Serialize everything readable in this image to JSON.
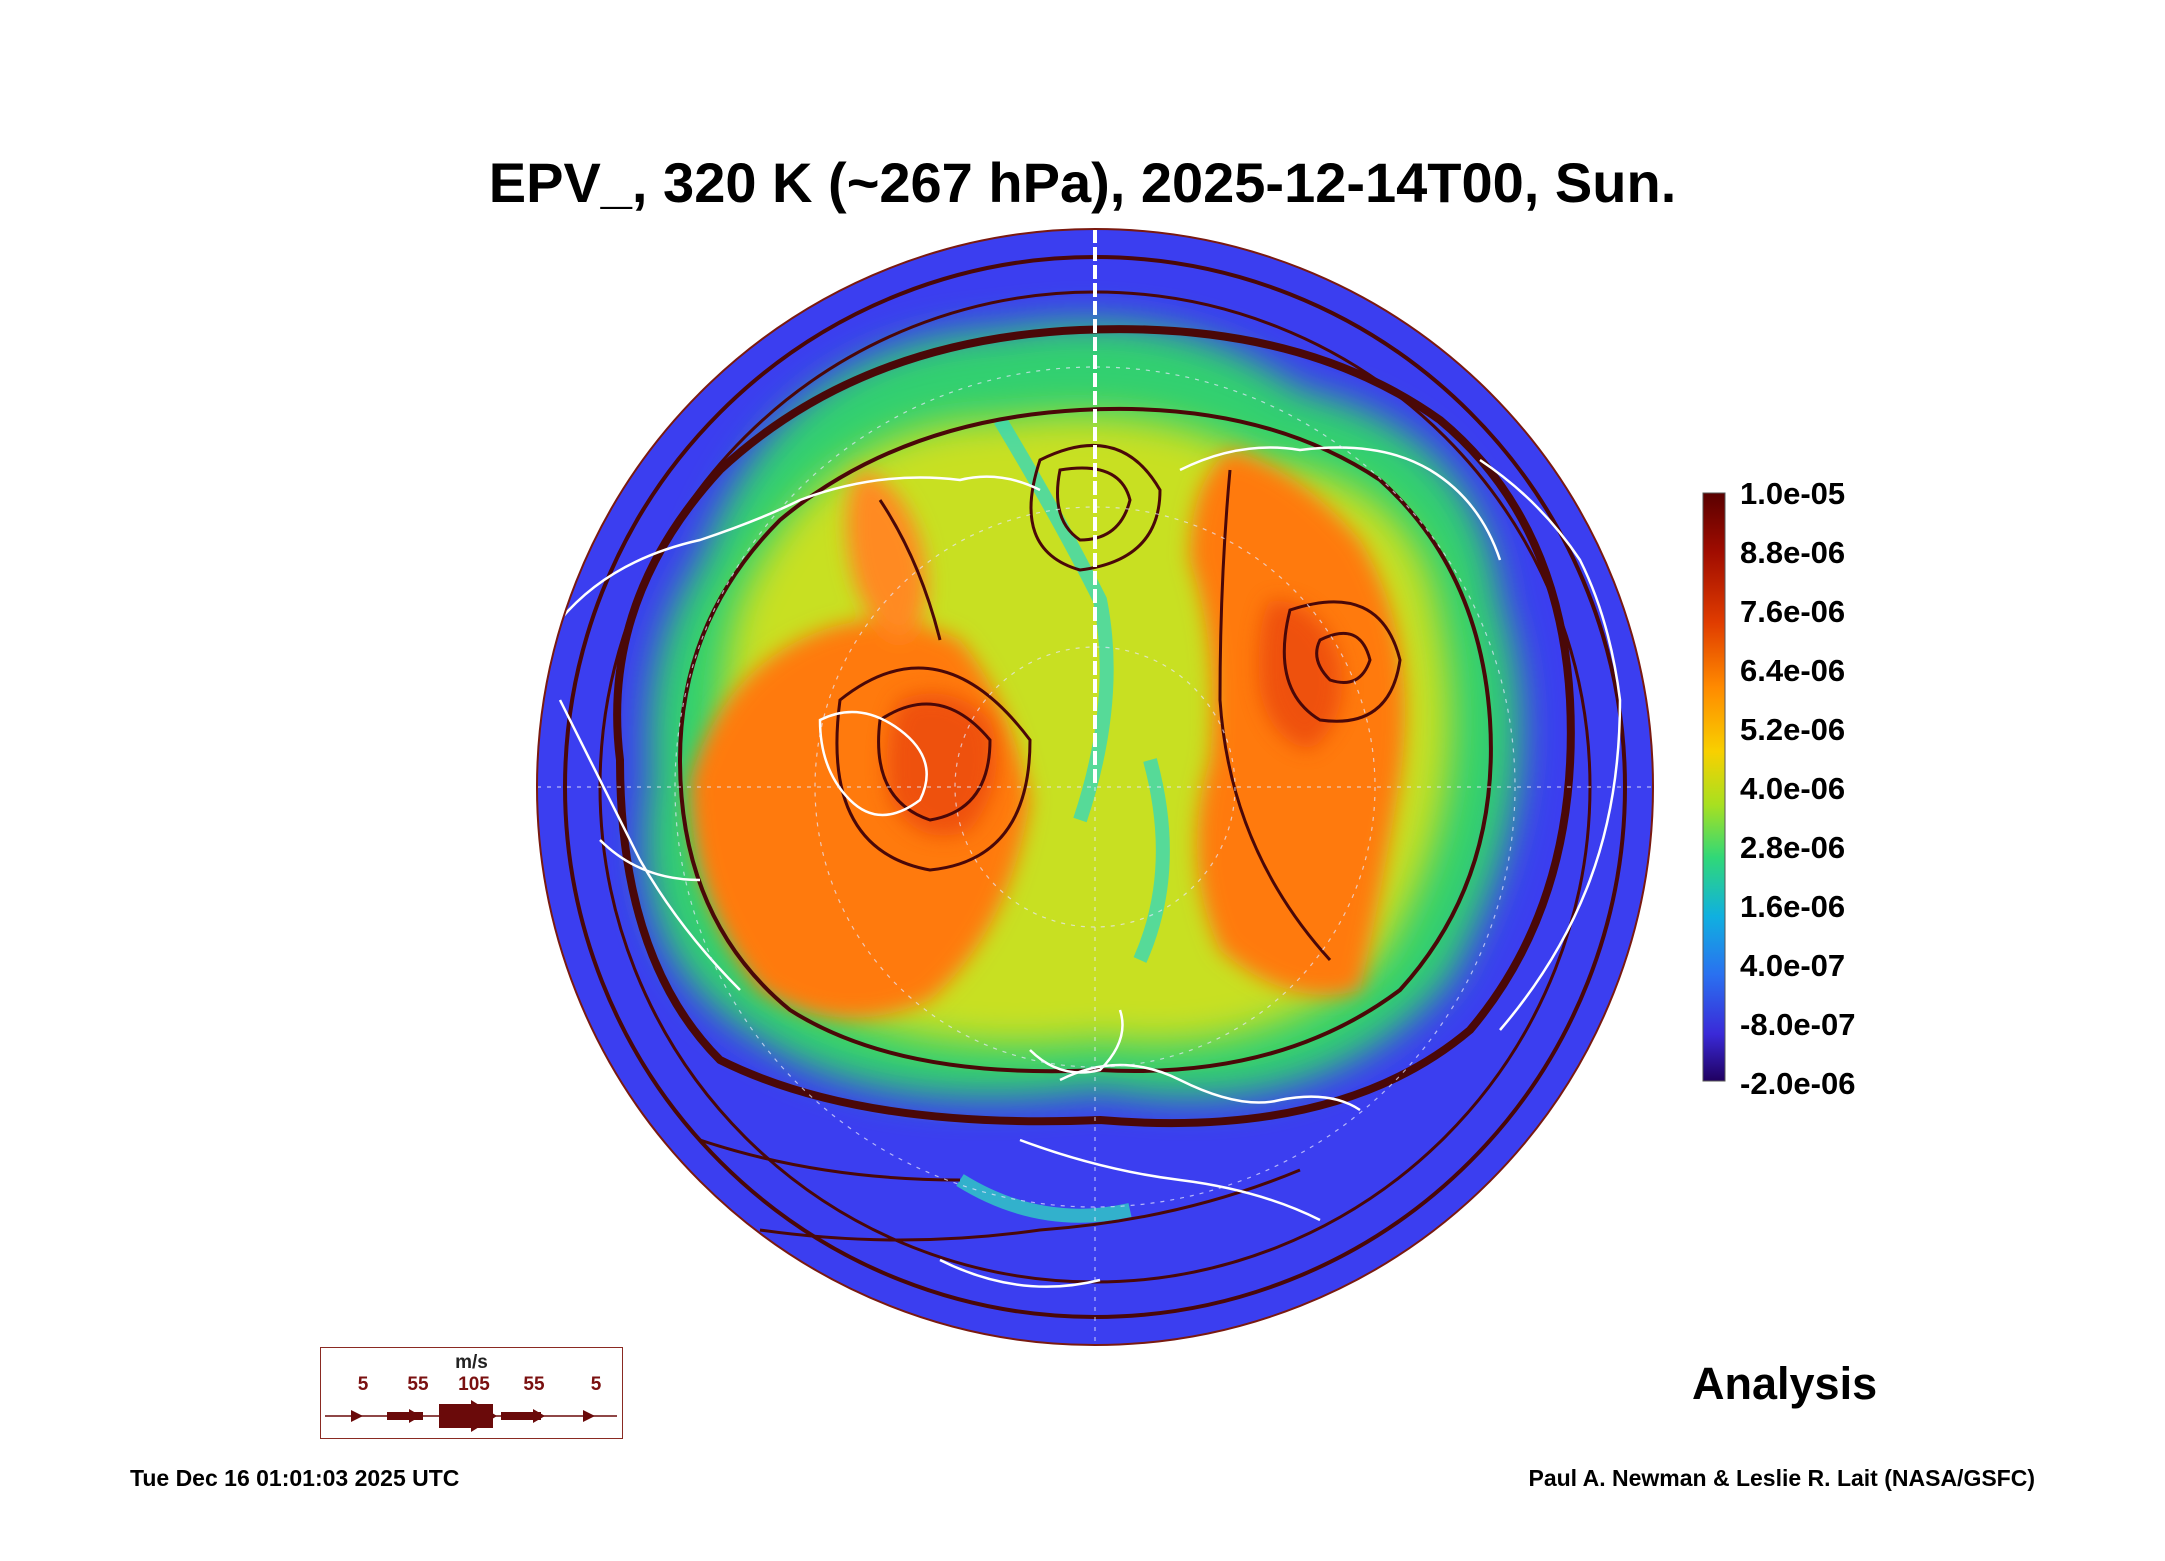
{
  "title": "EPV_, 320 K (~267 hPa), 2025-12-14T00, Sun.",
  "colorbar": {
    "labels": [
      "1.0e-05",
      "8.8e-06",
      "7.6e-06",
      "6.4e-06",
      "5.2e-06",
      "4.0e-06",
      "2.8e-06",
      "1.6e-06",
      "4.0e-07",
      "-8.0e-07",
      "-2.0e-06"
    ],
    "colors": [
      "#6a0000",
      "#b00f00",
      "#e84a00",
      "#ff8a00",
      "#f4d400",
      "#a8e020",
      "#30d878",
      "#10b0e0",
      "#2a70f0",
      "#3a2ad8",
      "#200060"
    ]
  },
  "wind_legend": {
    "unit": "m/s",
    "values": [
      "5",
      "55",
      "105",
      "55",
      "5"
    ],
    "color": "#6a0a0a"
  },
  "panel_label": "Analysis",
  "timestamp": "Tue Dec 16 01:01:03 2025 UTC",
  "credit": "Paul A. Newman & Leslie R. Lait (NASA/GSFC)",
  "map": {
    "projection": "north polar stereographic",
    "background_color": "#3b3ef0",
    "coastline_color": "#ffffff",
    "streamline_color": "#4a0808"
  }
}
